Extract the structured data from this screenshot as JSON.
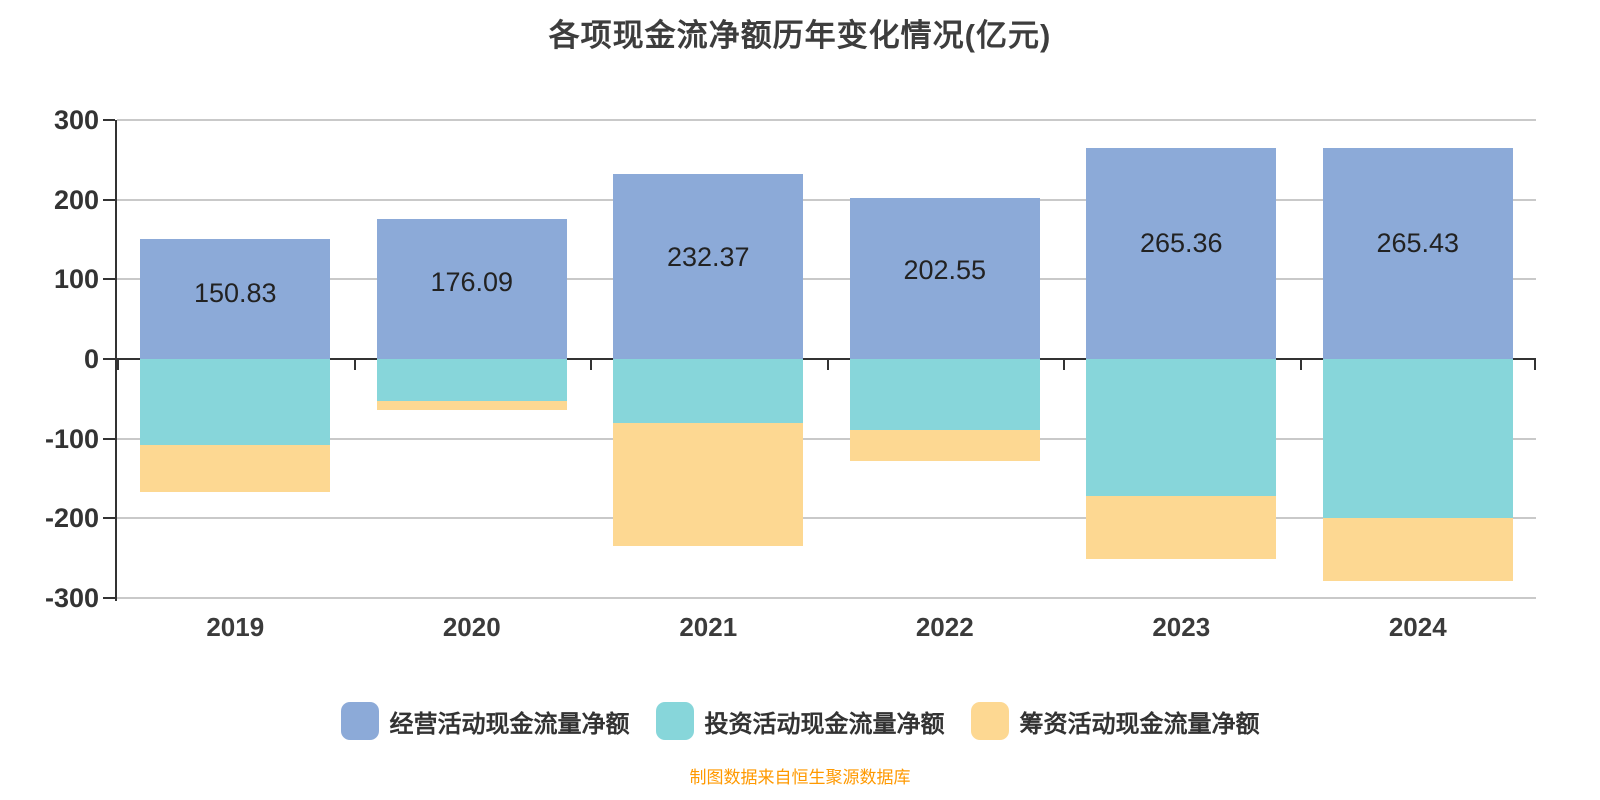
{
  "title": "各项现金流净额历年变化情况(亿元)",
  "footer": "制图数据来自恒生聚源数据库",
  "colors": {
    "background": "#ffffff",
    "operating": "#8caad8",
    "investing": "#87d6da",
    "financing": "#fdd892",
    "grid": "#c9c9c9",
    "axis": "#333333",
    "title_text": "#3d3d3d",
    "bar_label_text": "#222222",
    "footer_text": "#ff9900"
  },
  "chart_data": {
    "type": "bar",
    "stacked": true,
    "title": "各项现金流净额历年变化情况(亿元)",
    "xlabel": "",
    "ylabel": "",
    "categories": [
      "2019",
      "2020",
      "2021",
      "2022",
      "2023",
      "2024"
    ],
    "series": [
      {
        "name": "经营活动现金流量净额",
        "color": "#8caad8",
        "values": [
          150.83,
          176.09,
          232.37,
          202.55,
          265.36,
          265.43
        ],
        "labels_shown": true
      },
      {
        "name": "投资活动现金流量净额",
        "color": "#87d6da",
        "values": [
          -108.5,
          -52.5,
          -80,
          -89,
          -172,
          -199
        ],
        "labels_shown": false,
        "values_estimated_from_gridlines": true
      },
      {
        "name": "筹资活动现金流量净额",
        "color": "#fdd892",
        "values": [
          -58.5,
          -11,
          -155,
          -38.5,
          -79.5,
          -79.5
        ],
        "labels_shown": false,
        "values_estimated_from_gridlines": true
      }
    ],
    "bar_labels": [
      "150.83",
      "176.09",
      "232.37",
      "202.55",
      "265.36",
      "265.43"
    ],
    "ylim": [
      -300,
      300
    ],
    "y_ticks": [
      300,
      200,
      100,
      0,
      -100,
      -200,
      -300
    ],
    "grid": true,
    "legend_position": "bottom"
  }
}
